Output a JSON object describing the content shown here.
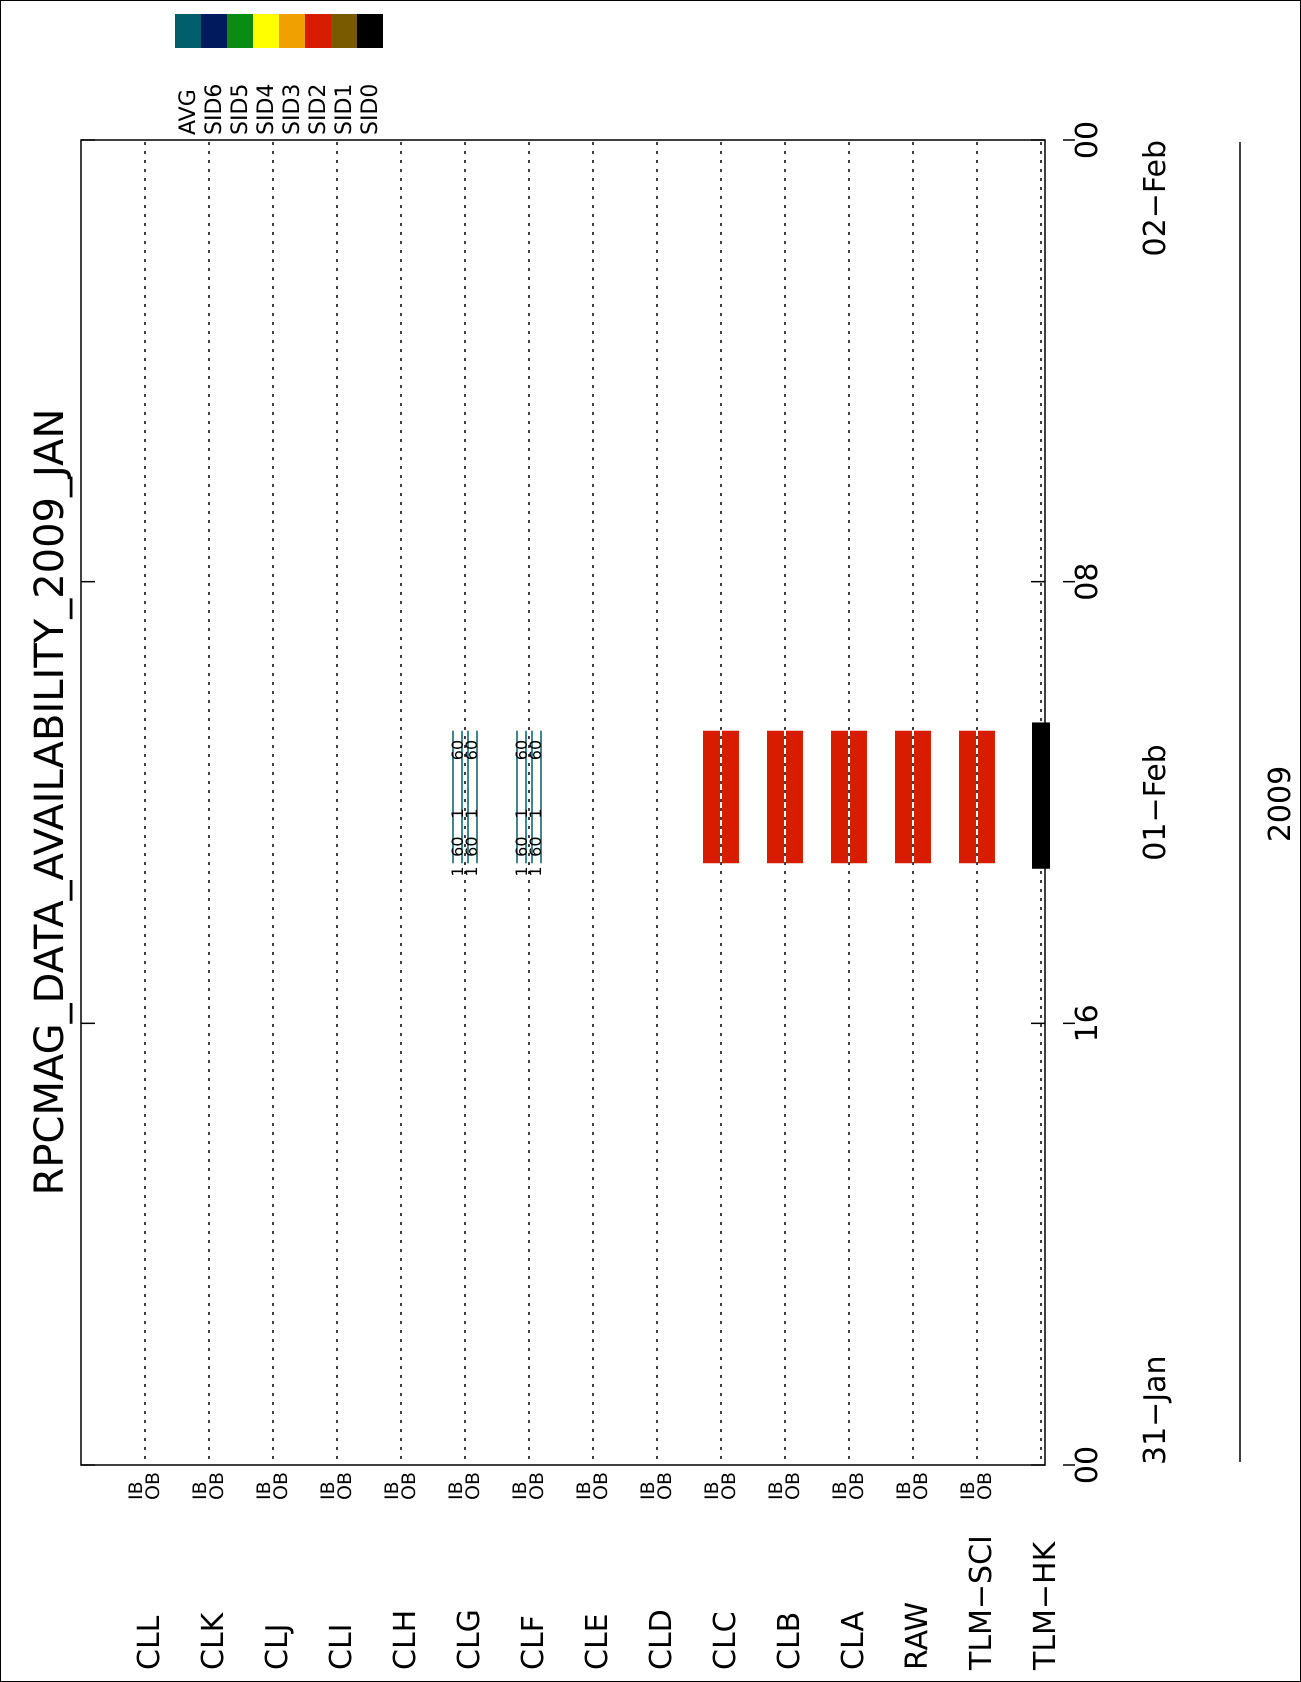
{
  "chart_data": {
    "type": "timeline",
    "title": "RPCMAG_DATA_AVAILABILITY_2009_JAN",
    "x_axis": {
      "label": "2009",
      "ticks": [
        "00",
        "16",
        "08",
        "00"
      ],
      "tick_hours": [
        0,
        16,
        32,
        48
      ],
      "date_labels": [
        {
          "text": "31−Jan",
          "hour": 0
        },
        {
          "text": "01−Feb",
          "hour": 24
        },
        {
          "text": "02−Feb",
          "hour": 48
        }
      ],
      "range_hours": [
        0,
        48
      ]
    },
    "rows": [
      "CLL",
      "CLK",
      "CLJ",
      "CLI",
      "CLH",
      "CLG",
      "CLF",
      "CLE",
      "CLD",
      "CLC",
      "CLB",
      "CLA",
      "RAW",
      "TLM−SCI",
      "TLM−HK"
    ],
    "sub_labels": [
      "IB",
      "OB"
    ],
    "legend": [
      {
        "name": "AVG",
        "color": "#005f6a"
      },
      {
        "name": "SID6",
        "color": "#001a5e"
      },
      {
        "name": "SID5",
        "color": "#0a8c14"
      },
      {
        "name": "SID4",
        "color": "#ffff00"
      },
      {
        "name": "SID3",
        "color": "#f0a000"
      },
      {
        "name": "SID2",
        "color": "#d81c00"
      },
      {
        "name": "SID1",
        "color": "#7a5a00"
      },
      {
        "name": "SID0",
        "color": "#000000"
      }
    ],
    "bars": [
      {
        "row": "CLC",
        "band": "IB",
        "start": 21.8,
        "end": 26.6,
        "sid": "SID2"
      },
      {
        "row": "CLC",
        "band": "OB",
        "start": 21.8,
        "end": 26.6,
        "sid": "SID2"
      },
      {
        "row": "CLB",
        "band": "IB",
        "start": 21.8,
        "end": 26.6,
        "sid": "SID2"
      },
      {
        "row": "CLB",
        "band": "OB",
        "start": 21.8,
        "end": 26.6,
        "sid": "SID2"
      },
      {
        "row": "CLA",
        "band": "IB",
        "start": 21.8,
        "end": 26.6,
        "sid": "SID2"
      },
      {
        "row": "CLA",
        "band": "OB",
        "start": 21.8,
        "end": 26.6,
        "sid": "SID2"
      },
      {
        "row": "RAW",
        "band": "IB",
        "start": 21.8,
        "end": 26.6,
        "sid": "SID2"
      },
      {
        "row": "RAW",
        "band": "OB",
        "start": 21.8,
        "end": 26.6,
        "sid": "SID2"
      },
      {
        "row": "TLM−SCI",
        "band": "IB",
        "start": 21.8,
        "end": 26.6,
        "sid": "SID2"
      },
      {
        "row": "TLM−SCI",
        "band": "OB",
        "start": 21.8,
        "end": 26.6,
        "sid": "SID2"
      },
      {
        "row": "TLM−HK",
        "band": "single",
        "start": 21.6,
        "end": 26.9,
        "sid": "SID0"
      }
    ],
    "avg_lines": [
      {
        "row": "CLG",
        "start": 21.8,
        "end": 26.6
      },
      {
        "row": "CLF",
        "start": 21.8,
        "end": 26.6
      }
    ],
    "annotations": [
      {
        "row": "CLG",
        "band": "IB",
        "hour": 25.9,
        "text": "60"
      },
      {
        "row": "CLG",
        "band": "OB",
        "hour": 25.9,
        "text": "60"
      },
      {
        "row": "CLG",
        "band": "IB",
        "hour": 22.4,
        "text": "60"
      },
      {
        "row": "CLG",
        "band": "OB",
        "hour": 22.4,
        "text": "60"
      },
      {
        "row": "CLG",
        "band": "IB",
        "hour": 21.5,
        "text": "1"
      },
      {
        "row": "CLG",
        "band": "OB",
        "hour": 21.5,
        "text": "1"
      },
      {
        "row": "CLG",
        "band": "IB",
        "hour": 23.6,
        "text": "1"
      },
      {
        "row": "CLG",
        "band": "OB",
        "hour": 23.6,
        "text": "1"
      },
      {
        "row": "CLF",
        "band": "IB",
        "hour": 25.9,
        "text": "60"
      },
      {
        "row": "CLF",
        "band": "OB",
        "hour": 25.9,
        "text": "60"
      },
      {
        "row": "CLF",
        "band": "IB",
        "hour": 22.4,
        "text": "60"
      },
      {
        "row": "CLF",
        "band": "OB",
        "hour": 22.4,
        "text": "60"
      },
      {
        "row": "CLF",
        "band": "IB",
        "hour": 21.5,
        "text": "1"
      },
      {
        "row": "CLF",
        "band": "OB",
        "hour": 21.5,
        "text": "1"
      },
      {
        "row": "CLF",
        "band": "IB",
        "hour": 23.6,
        "text": "1"
      },
      {
        "row": "CLF",
        "band": "OB",
        "hour": 23.6,
        "text": "1"
      }
    ]
  }
}
